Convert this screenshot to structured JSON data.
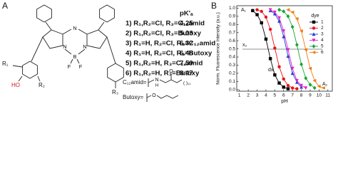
{
  "panel_a": {
    "label": "A",
    "pka_header": "pK'ₐ",
    "compounds": [
      {
        "label": "1) R₁,R₂=Cl, R₃=C₁₂amid",
        "pka": 4.25
      },
      {
        "label": "2) R₁,R₂=Cl, R₃=Butoxy",
        "pka": 5.03
      },
      {
        "label": "3) R₁=H, R₂=Cl, R₃=C₁₂amid",
        "pka": 6.32
      },
      {
        "label": "4) R₁=H, R₂=Cl, R₃=Butoxy",
        "pka": 6.48
      },
      {
        "label": "5) R₁,R₂=H, R₃=C₁₂amid",
        "pka": 7.59
      },
      {
        "label": "6) R₁,R₂=H, R₃=Butoxy",
        "pka": 8.47
      }
    ],
    "structure": {
      "r1": "R₁",
      "r2": "R₂",
      "r3": "R₃",
      "ho": "HO",
      "n_meso": "N",
      "n_left": "N",
      "n_right": "N",
      "boron": "B",
      "f_left": "F",
      "f_right": "F"
    },
    "substituents": {
      "amid": "C₁₂amid=",
      "amid_n": "N",
      "amid_h": "H",
      "amid_o": "O",
      "amid_chain": "( )₁₁",
      "butoxy": "Butoxy=",
      "butoxy_o": "O"
    }
  },
  "chart_data": {
    "type": "line",
    "panel_label": "B",
    "x_label": "pH",
    "y_label": "Norm. Fluorescence Intensity (a.u.)",
    "annotations": {
      "a1": "A₁",
      "a2": "A₂",
      "x0": "x₀",
      "dx": "dx"
    },
    "legend_title": "dye",
    "legend": "upper right",
    "xlim": [
      0.7,
      11.5
    ],
    "ylim": [
      -0.02,
      1.03
    ],
    "xticks": [
      1,
      2,
      3,
      4,
      5,
      6,
      7,
      8,
      9,
      10,
      11
    ],
    "yticks": [
      {
        "value": 0,
        "label": "0.0"
      },
      0.1,
      0.2,
      0.3,
      0.4,
      0.5,
      0.6,
      0.7,
      0.8,
      0.9,
      {
        "value": 1,
        "label": "1.0"
      }
    ],
    "grid": false,
    "series": [
      {
        "name": "1",
        "color": "#000000",
        "marker": "square",
        "x": [
          2.5,
          3,
          3.5,
          4,
          4.5,
          5,
          5.5,
          6,
          6.5
        ],
        "values": [
          0.97,
          0.92,
          0.82,
          0.62,
          0.38,
          0.18,
          0.08,
          0.03,
          0.01
        ]
      },
      {
        "name": "2",
        "color": "#e8141c",
        "marker": "circle",
        "x": [
          3,
          3.5,
          4,
          4.5,
          5,
          5.5,
          6,
          6.5,
          7,
          7.5
        ],
        "values": [
          0.98,
          0.96,
          0.89,
          0.74,
          0.51,
          0.28,
          0.13,
          0.05,
          0.02,
          0.01
        ]
      },
      {
        "name": "3",
        "color": "#1f3fd6",
        "marker": "triangle",
        "x": [
          4.5,
          5,
          5.5,
          6,
          6.5,
          7,
          7.5,
          8
        ],
        "values": [
          0.97,
          0.93,
          0.84,
          0.65,
          0.41,
          0.2,
          0.09,
          0.03
        ]
      },
      {
        "name": "4",
        "color": "#e020c8",
        "marker": "triangle-down",
        "x": [
          4.5,
          5,
          5.5,
          6,
          6.5,
          7,
          7.5,
          8,
          8.5
        ],
        "values": [
          0.98,
          0.95,
          0.88,
          0.72,
          0.49,
          0.26,
          0.11,
          0.05,
          0.02
        ]
      },
      {
        "name": "5",
        "color": "#16a630",
        "marker": "diamond",
        "x": [
          5.5,
          6,
          6.5,
          7,
          7.5,
          8,
          8.5,
          9,
          9.5
        ],
        "values": [
          0.98,
          0.96,
          0.9,
          0.77,
          0.55,
          0.31,
          0.14,
          0.06,
          0.02
        ]
      },
      {
        "name": "6",
        "color": "#f07a10",
        "marker": "triangle-left",
        "x": [
          6.5,
          7,
          7.5,
          8,
          8.5,
          9,
          9.5,
          10,
          10.5
        ],
        "values": [
          0.98,
          0.95,
          0.87,
          0.72,
          0.49,
          0.26,
          0.11,
          0.04,
          0.02
        ]
      }
    ]
  }
}
